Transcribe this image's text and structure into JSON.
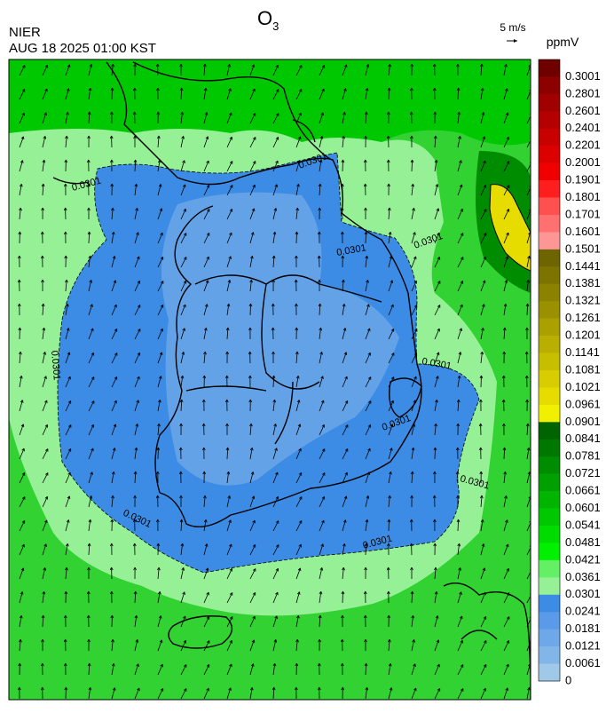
{
  "header": {
    "title": "O",
    "title_subscript": "3",
    "agency": "NIER",
    "datetime": "AUG 18 2025 01:00 KST",
    "wind_scale": "5 m/s"
  },
  "colorbar": {
    "unit": "ppmV",
    "levels": [
      0.3001,
      0.2801,
      0.2601,
      0.2401,
      0.2201,
      0.2001,
      0.1901,
      0.1801,
      0.1701,
      0.1601,
      0.1501,
      0.1441,
      0.1381,
      0.1321,
      0.1261,
      0.1201,
      0.1141,
      0.1081,
      0.1021,
      0.0961,
      0.0901,
      0.0841,
      0.0781,
      0.0721,
      0.0661,
      0.0601,
      0.0541,
      0.0481,
      0.0421,
      0.0361,
      0.0301,
      0.0241,
      0.0181,
      0.0121,
      0.0061,
      0
    ],
    "colors": [
      "#6e0000",
      "#8c0000",
      "#a00000",
      "#b40000",
      "#c80000",
      "#dc0000",
      "#f00000",
      "#ff1e1e",
      "#ff5050",
      "#ff7070",
      "#ff9696",
      "#6e6400",
      "#7d7300",
      "#8c8200",
      "#9b9100",
      "#aaa000",
      "#b9af00",
      "#c8be00",
      "#d7cd00",
      "#e6dc00",
      "#f0f000",
      "#006400",
      "#007800",
      "#008c00",
      "#00a000",
      "#00b400",
      "#00c800",
      "#00dc00",
      "#00f000",
      "#64f064",
      "#96f096",
      "#3c8ce6",
      "#5a9ae8",
      "#6ea8e8",
      "#82b6e8",
      "#a0c8e8"
    ]
  },
  "contour_labels": [
    "0.0301",
    "0.0301",
    "0.0301",
    "0.0301",
    "0.0301",
    "0.0301",
    "0.0301",
    "0.0301",
    "0.0301",
    "0.0301"
  ]
}
